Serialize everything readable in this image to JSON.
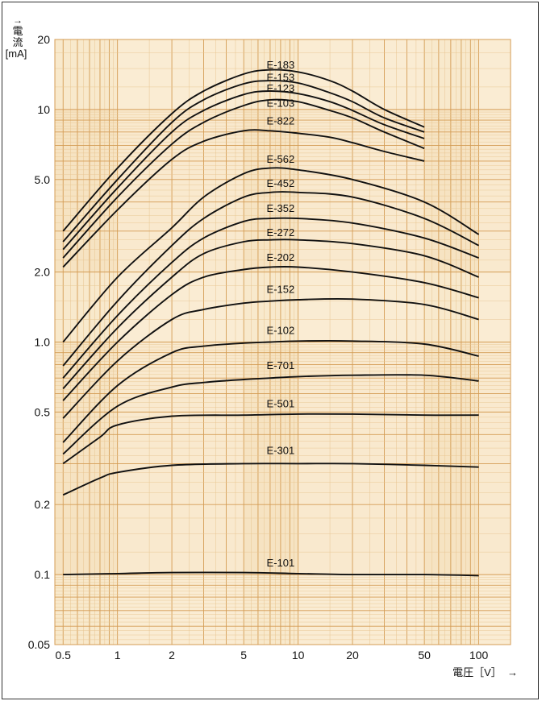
{
  "chart_data": {
    "type": "line",
    "xscale": "log",
    "yscale": "log",
    "xlim": [
      0.45,
      150
    ],
    "ylim": [
      0.05,
      20
    ],
    "grid": true,
    "xlabel": "電圧［V］",
    "ylabel_chars": [
      "電",
      "流"
    ],
    "ylabel_unit": "[mA]",
    "xticks": [
      {
        "value": 0.5,
        "label": "0.5"
      },
      {
        "value": 1,
        "label": "1"
      },
      {
        "value": 2,
        "label": "2"
      },
      {
        "value": 5,
        "label": "5"
      },
      {
        "value": 10,
        "label": "10"
      },
      {
        "value": 20,
        "label": "20"
      },
      {
        "value": 50,
        "label": "50"
      },
      {
        "value": 100,
        "label": "100"
      }
    ],
    "yticks": [
      {
        "value": 0.05,
        "label": "0.05"
      },
      {
        "value": 0.1,
        "label": "0.1"
      },
      {
        "value": 0.2,
        "label": "0.2"
      },
      {
        "value": 0.5,
        "label": "0.5"
      },
      {
        "value": 1,
        "label": "1.0"
      },
      {
        "value": 2,
        "label": "2.0"
      },
      {
        "value": 5,
        "label": "5.0"
      },
      {
        "value": 10,
        "label": "10"
      },
      {
        "value": 20,
        "label": "20"
      }
    ],
    "series": [
      {
        "name": "E-183",
        "label_x": 8.0,
        "label_y": 15.5,
        "points": [
          [
            0.5,
            3.0
          ],
          [
            1,
            5.6
          ],
          [
            2,
            9.6
          ],
          [
            3,
            12.0
          ],
          [
            5,
            14.2
          ],
          [
            7,
            14.8
          ],
          [
            10,
            14.5
          ],
          [
            15,
            13.3
          ],
          [
            20,
            12.0
          ],
          [
            30,
            10.0
          ],
          [
            50,
            8.4
          ]
        ]
      },
      {
        "name": "E-153",
        "label_x": 8.0,
        "label_y": 13.7,
        "points": [
          [
            0.5,
            2.7
          ],
          [
            1,
            5.0
          ],
          [
            2,
            8.8
          ],
          [
            3,
            11.0
          ],
          [
            5,
            12.9
          ],
          [
            7,
            13.3
          ],
          [
            10,
            13.0
          ],
          [
            15,
            11.8
          ],
          [
            20,
            10.8
          ],
          [
            30,
            9.2
          ],
          [
            50,
            8.0
          ]
        ]
      },
      {
        "name": "E-123",
        "label_x": 8.0,
        "label_y": 12.3,
        "points": [
          [
            0.5,
            2.5
          ],
          [
            1,
            4.6
          ],
          [
            2,
            8.0
          ],
          [
            3,
            9.9
          ],
          [
            5,
            11.6
          ],
          [
            7,
            12.0
          ],
          [
            10,
            11.7
          ],
          [
            15,
            10.8
          ],
          [
            20,
            9.9
          ],
          [
            30,
            8.6
          ],
          [
            50,
            7.5
          ]
        ]
      },
      {
        "name": "E-103",
        "label_x": 8.0,
        "label_y": 10.6,
        "points": [
          [
            0.5,
            2.3
          ],
          [
            1,
            4.2
          ],
          [
            2,
            7.1
          ],
          [
            3,
            8.8
          ],
          [
            5,
            10.4
          ],
          [
            7,
            11.0
          ],
          [
            10,
            10.8
          ],
          [
            15,
            9.9
          ],
          [
            20,
            9.2
          ],
          [
            30,
            8.0
          ],
          [
            50,
            6.8
          ]
        ]
      },
      {
        "name": "E-822",
        "label_x": 8.0,
        "label_y": 8.9,
        "points": [
          [
            0.5,
            2.1
          ],
          [
            1,
            3.7
          ],
          [
            2,
            6.1
          ],
          [
            3,
            7.3
          ],
          [
            5,
            8.1
          ],
          [
            7,
            8.1
          ],
          [
            10,
            7.9
          ],
          [
            15,
            7.6
          ],
          [
            20,
            7.2
          ],
          [
            30,
            6.6
          ],
          [
            50,
            6.0
          ]
        ]
      },
      {
        "name": "E-562",
        "label_x": 8.0,
        "label_y": 6.1,
        "points": [
          [
            0.5,
            1.0
          ],
          [
            1,
            1.9
          ],
          [
            2,
            3.1
          ],
          [
            3,
            4.2
          ],
          [
            5,
            5.3
          ],
          [
            7,
            5.6
          ],
          [
            10,
            5.5
          ],
          [
            20,
            5.0
          ],
          [
            50,
            4.0
          ],
          [
            100,
            2.9
          ]
        ]
      },
      {
        "name": "E-452",
        "label_x": 8.0,
        "label_y": 4.8,
        "points": [
          [
            0.5,
            0.79
          ],
          [
            1,
            1.5
          ],
          [
            2,
            2.6
          ],
          [
            3,
            3.4
          ],
          [
            5,
            4.2
          ],
          [
            7,
            4.4
          ],
          [
            10,
            4.4
          ],
          [
            20,
            4.2
          ],
          [
            50,
            3.4
          ],
          [
            100,
            2.6
          ]
        ]
      },
      {
        "name": "E-352",
        "label_x": 8.0,
        "label_y": 3.75,
        "points": [
          [
            0.5,
            0.7
          ],
          [
            1,
            1.3
          ],
          [
            2,
            2.2
          ],
          [
            3,
            2.8
          ],
          [
            5,
            3.3
          ],
          [
            7,
            3.4
          ],
          [
            10,
            3.4
          ],
          [
            20,
            3.25
          ],
          [
            50,
            2.8
          ],
          [
            100,
            2.3
          ]
        ]
      },
      {
        "name": "E-272",
        "label_x": 8.0,
        "label_y": 2.95,
        "points": [
          [
            0.5,
            0.63
          ],
          [
            1,
            1.15
          ],
          [
            2,
            1.9
          ],
          [
            3,
            2.4
          ],
          [
            5,
            2.7
          ],
          [
            7,
            2.75
          ],
          [
            10,
            2.75
          ],
          [
            20,
            2.65
          ],
          [
            50,
            2.35
          ],
          [
            100,
            1.9
          ]
        ]
      },
      {
        "name": "E-202",
        "label_x": 8.0,
        "label_y": 2.3,
        "points": [
          [
            0.5,
            0.56
          ],
          [
            1,
            1.0
          ],
          [
            2,
            1.6
          ],
          [
            3,
            1.9
          ],
          [
            5,
            2.05
          ],
          [
            7,
            2.1
          ],
          [
            10,
            2.1
          ],
          [
            20,
            2.0
          ],
          [
            50,
            1.8
          ],
          [
            100,
            1.55
          ]
        ]
      },
      {
        "name": "E-152",
        "label_x": 8.0,
        "label_y": 1.68,
        "points": [
          [
            0.5,
            0.47
          ],
          [
            1,
            0.83
          ],
          [
            2,
            1.25
          ],
          [
            3,
            1.38
          ],
          [
            5,
            1.47
          ],
          [
            7,
            1.5
          ],
          [
            10,
            1.52
          ],
          [
            20,
            1.53
          ],
          [
            50,
            1.45
          ],
          [
            100,
            1.25
          ]
        ]
      },
      {
        "name": "E-102",
        "label_x": 8.0,
        "label_y": 1.12,
        "points": [
          [
            0.5,
            0.37
          ],
          [
            1,
            0.65
          ],
          [
            2,
            0.9
          ],
          [
            3,
            0.96
          ],
          [
            5,
            0.99
          ],
          [
            7,
            1.0
          ],
          [
            10,
            1.01
          ],
          [
            20,
            1.01
          ],
          [
            50,
            0.98
          ],
          [
            100,
            0.87
          ]
        ]
      },
      {
        "name": "E-701",
        "label_x": 8.0,
        "label_y": 0.79,
        "points": [
          [
            0.5,
            0.33
          ],
          [
            1,
            0.53
          ],
          [
            2,
            0.64
          ],
          [
            3,
            0.67
          ],
          [
            5,
            0.69
          ],
          [
            7,
            0.7
          ],
          [
            10,
            0.71
          ],
          [
            20,
            0.72
          ],
          [
            50,
            0.72
          ],
          [
            100,
            0.68
          ]
        ]
      },
      {
        "name": "E-501",
        "label_x": 8.0,
        "label_y": 0.54,
        "points": [
          [
            0.5,
            0.3
          ],
          [
            0.8,
            0.39
          ],
          [
            1,
            0.44
          ],
          [
            2,
            0.48
          ],
          [
            5,
            0.485
          ],
          [
            10,
            0.49
          ],
          [
            20,
            0.49
          ],
          [
            50,
            0.485
          ],
          [
            100,
            0.485
          ]
        ]
      },
      {
        "name": "E-301",
        "label_x": 8.0,
        "label_y": 0.34,
        "points": [
          [
            0.5,
            0.22
          ],
          [
            0.8,
            0.26
          ],
          [
            1,
            0.275
          ],
          [
            2,
            0.295
          ],
          [
            5,
            0.3
          ],
          [
            10,
            0.3
          ],
          [
            20,
            0.3
          ],
          [
            50,
            0.295
          ],
          [
            100,
            0.29
          ]
        ]
      },
      {
        "name": "E-101",
        "label_x": 8.0,
        "label_y": 0.112,
        "points": [
          [
            0.5,
            0.1
          ],
          [
            1,
            0.101
          ],
          [
            2,
            0.102
          ],
          [
            5,
            0.102
          ],
          [
            10,
            0.101
          ],
          [
            20,
            0.1
          ],
          [
            50,
            0.1
          ],
          [
            100,
            0.099
          ]
        ]
      }
    ]
  },
  "colors": {
    "grid_bg": "#f6e3c2",
    "grid_minor": "#e8c590",
    "grid_major": "#d49c54",
    "grid_band": "#fbefd9",
    "curve": "#111111",
    "text": "#111111"
  }
}
